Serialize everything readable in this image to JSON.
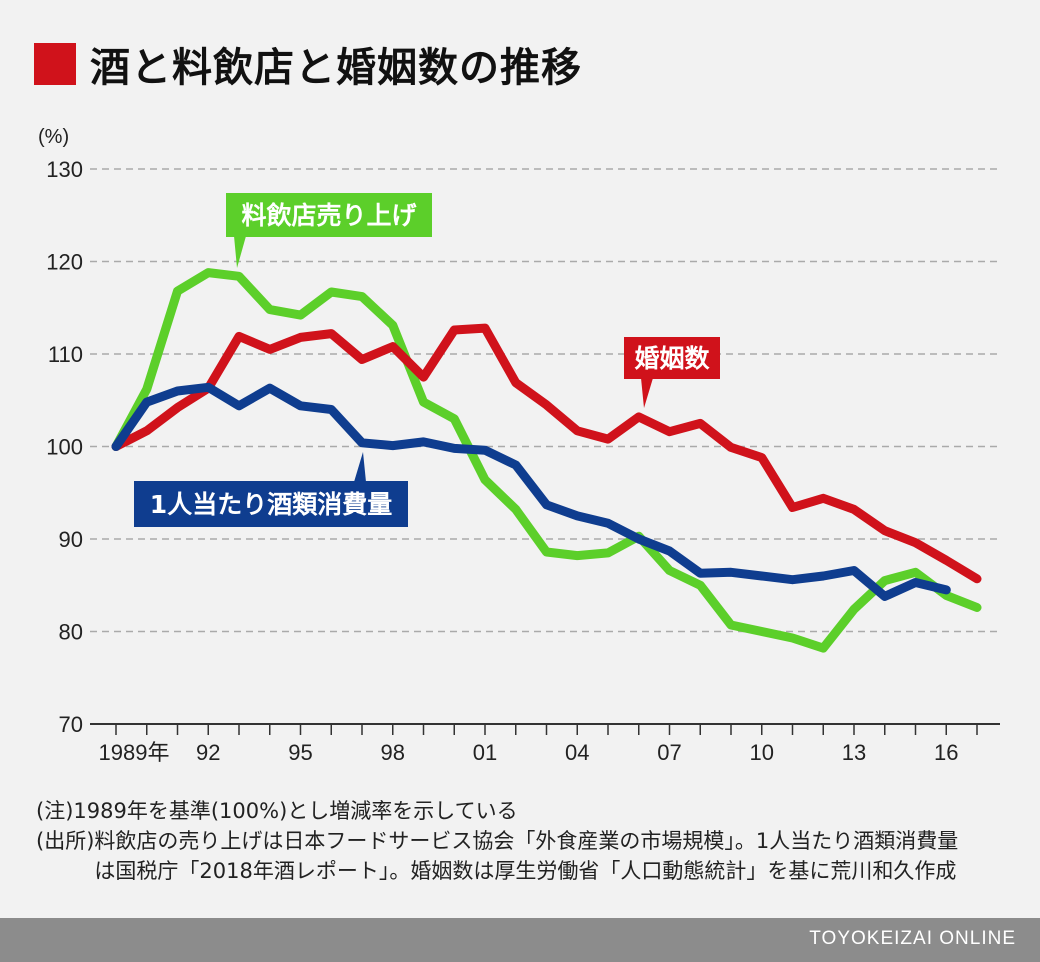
{
  "title": "酒と料飲店と婚姻数の推移",
  "title_mark_color": "#d0121b",
  "chart_data": {
    "type": "line",
    "ylabel": "(%)",
    "ylim": [
      70,
      130
    ],
    "yticks": [
      70,
      80,
      90,
      100,
      110,
      120,
      130
    ],
    "xlim": [
      1989,
      2017
    ],
    "xticks": [
      {
        "value": 1989,
        "label": "1989年"
      },
      {
        "value": 1992,
        "label": "92"
      },
      {
        "value": 1995,
        "label": "95"
      },
      {
        "value": 1998,
        "label": "98"
      },
      {
        "value": 2001,
        "label": "01"
      },
      {
        "value": 2004,
        "label": "04"
      },
      {
        "value": 2007,
        "label": "07"
      },
      {
        "value": 2010,
        "label": "10"
      },
      {
        "value": 2013,
        "label": "13"
      },
      {
        "value": 2016,
        "label": "16"
      }
    ],
    "grid": true,
    "series": [
      {
        "name": "料飲店売り上げ",
        "color": "#5ccf2a",
        "x": [
          1989,
          1990,
          1991,
          1992,
          1993,
          1994,
          1995,
          1996,
          1997,
          1998,
          1999,
          2000,
          2001,
          2002,
          2003,
          2004,
          2005,
          2006,
          2007,
          2008,
          2009,
          2010,
          2011,
          2012,
          2013,
          2014,
          2015,
          2016,
          2017
        ],
        "y": [
          100.0,
          106.2,
          116.8,
          118.8,
          118.4,
          114.8,
          114.2,
          116.7,
          116.2,
          113.1,
          104.8,
          103.0,
          96.4,
          93.2,
          88.6,
          88.2,
          88.5,
          90.3,
          86.6,
          85.0,
          80.7,
          80.0,
          79.3,
          78.2,
          82.4,
          85.5,
          86.4,
          83.9,
          82.6
        ]
      },
      {
        "name": "婚姻数",
        "color": "#d0121b",
        "x": [
          1989,
          1990,
          1991,
          1992,
          1993,
          1994,
          1995,
          1996,
          1997,
          1998,
          1999,
          2000,
          2001,
          2002,
          2003,
          2004,
          2005,
          2006,
          2007,
          2008,
          2009,
          2010,
          2011,
          2012,
          2013,
          2014,
          2015,
          2016,
          2017
        ],
        "y": [
          100.0,
          101.7,
          104.2,
          106.3,
          111.9,
          110.5,
          111.8,
          112.2,
          109.4,
          110.8,
          107.5,
          112.6,
          112.8,
          106.9,
          104.5,
          101.7,
          100.8,
          103.2,
          101.6,
          102.5,
          99.9,
          98.8,
          93.4,
          94.4,
          93.2,
          90.9,
          89.6,
          87.7,
          85.7
        ]
      },
      {
        "name": "1人当たり酒類消費量",
        "color": "#0f3d8f",
        "x": [
          1989,
          1990,
          1991,
          1992,
          1993,
          1994,
          1995,
          1996,
          1997,
          1998,
          1999,
          2000,
          2001,
          2002,
          2003,
          2004,
          2005,
          2006,
          2007,
          2008,
          2009,
          2010,
          2011,
          2012,
          2013,
          2014,
          2015,
          2016
        ],
        "y": [
          100.0,
          104.8,
          106.0,
          106.4,
          104.4,
          106.3,
          104.4,
          104.0,
          100.4,
          100.1,
          100.5,
          99.8,
          99.6,
          98.0,
          93.7,
          92.5,
          91.7,
          90.0,
          88.7,
          86.3,
          86.4,
          86.0,
          85.6,
          86.0,
          86.6,
          83.8,
          85.3,
          84.5
        ]
      }
    ],
    "annotations": [
      "料飲店売り上げ",
      "婚姻数",
      "1人当たり酒類消費量"
    ]
  },
  "notes": [
    {
      "label": "(注)",
      "text": "1989年を基準(100%)とし増減率を示している"
    },
    {
      "label": "(出所)",
      "text": "料飲店の売り上げは日本フードサービス協会「外食産業の市場規模」。1人当たり酒類消費量は国税庁「2018年酒レポート」。婚姻数は厚生労働省「人口動態統計」を基に荒川和久作成"
    }
  ],
  "footer": "TOYOKEIZAI ONLINE"
}
